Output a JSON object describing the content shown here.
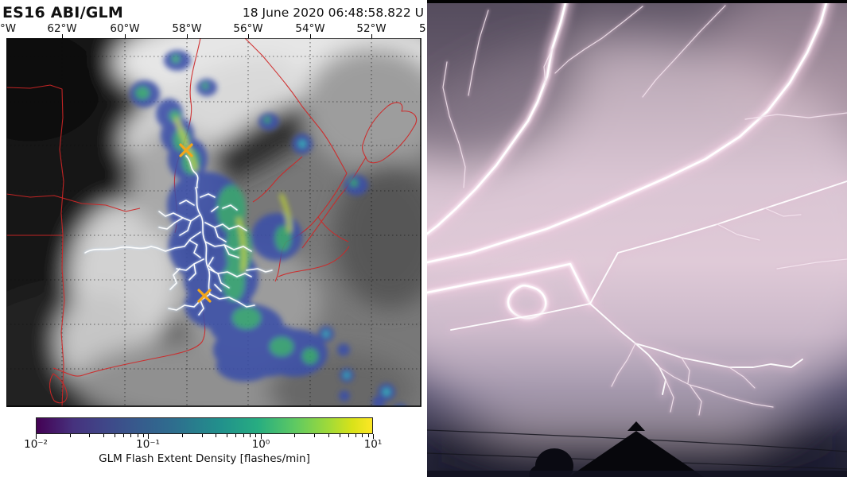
{
  "left_panel": {
    "title": "ES16 ABI/GLM",
    "timestamp": "18 June 2020 06:48:58.822 U",
    "longitude_labels": [
      "°W",
      "62°W",
      "60°W",
      "58°W",
      "56°W",
      "54°W",
      "52°W",
      "5"
    ],
    "colorbar": {
      "label": "GLM Flash Extent Density [flashes/min]",
      "tick_labels": [
        "10⁻²",
        "10⁻¹",
        "10⁰",
        "10¹"
      ],
      "scale": "log10",
      "colormap": "viridis",
      "min_color": "#440154",
      "max_color": "#fde725"
    },
    "map": {
      "boundary_color": "#cf2626",
      "flash_density_low_color": "#3b4fa8",
      "flash_density_mid_color": "#35ae6e",
      "flash_density_high_color": "#c6dd2e",
      "lightning_trace_color": "#ffffff",
      "flash_marker_color": "#f2a71b",
      "flash_marker_count": 2
    }
  },
  "right_panel": {
    "photo_colors": {
      "sky_bright": "#ecd7e3",
      "sky_mid": "#b5a0b4",
      "sky_dark": "#25253a",
      "bolt_core": "#ffffff",
      "bolt_glow": "#eec9de",
      "silhouette": "#07070c"
    }
  }
}
